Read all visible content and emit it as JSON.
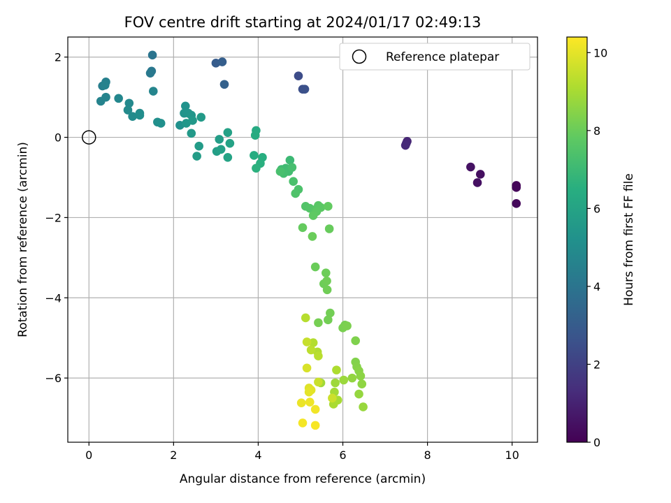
{
  "chart_data": {
    "type": "scatter",
    "title": "FOV centre drift starting at 2024/01/17 02:49:13",
    "xlabel": "Angular distance from reference (arcmin)",
    "ylabel": "Rotation from reference (arcmin)",
    "xlim": [
      -0.5,
      10.6
    ],
    "ylim": [
      -7.6,
      2.5
    ],
    "xticks": [
      0,
      2,
      4,
      6,
      8,
      10
    ],
    "yticks": [
      -6,
      -4,
      -2,
      0,
      2
    ],
    "grid": true,
    "colormap": "viridis",
    "colorbar": {
      "label": "Hours from first FF file",
      "range": [
        0,
        10.4
      ],
      "ticks": [
        0,
        2,
        4,
        6,
        8,
        10
      ]
    },
    "legend": {
      "location": "top-right",
      "entries": [
        {
          "label": "Reference platepar",
          "marker": "open-circle"
        }
      ]
    },
    "reference_point": {
      "x": 0,
      "y": 0
    },
    "points": [
      {
        "x": 10.1,
        "y": -1.2,
        "c": 0.1
      },
      {
        "x": 10.1,
        "y": -1.25,
        "c": 0.15
      },
      {
        "x": 10.1,
        "y": -1.65,
        "c": 0.2
      },
      {
        "x": 9.25,
        "y": -0.92,
        "c": 0.4
      },
      {
        "x": 9.18,
        "y": -1.13,
        "c": 0.45
      },
      {
        "x": 9.02,
        "y": -0.74,
        "c": 0.5
      },
      {
        "x": 7.52,
        "y": -0.1,
        "c": 1.1
      },
      {
        "x": 7.5,
        "y": -0.15,
        "c": 1.15
      },
      {
        "x": 7.48,
        "y": -0.2,
        "c": 1.2
      },
      {
        "x": 4.95,
        "y": 1.53,
        "c": 2.4
      },
      {
        "x": 5.05,
        "y": 1.2,
        "c": 2.5
      },
      {
        "x": 5.1,
        "y": 1.2,
        "c": 2.55
      },
      {
        "x": 3.0,
        "y": 1.85,
        "c": 3.0
      },
      {
        "x": 3.15,
        "y": 1.88,
        "c": 3.1
      },
      {
        "x": 3.2,
        "y": 1.32,
        "c": 3.2
      },
      {
        "x": 1.5,
        "y": 2.05,
        "c": 4.0
      },
      {
        "x": 1.48,
        "y": 1.65,
        "c": 4.1
      },
      {
        "x": 1.45,
        "y": 1.6,
        "c": 4.2
      },
      {
        "x": 0.32,
        "y": 1.28,
        "c": 4.4
      },
      {
        "x": 0.4,
        "y": 1.38,
        "c": 4.5
      },
      {
        "x": 0.38,
        "y": 1.3,
        "c": 4.55
      },
      {
        "x": 0.28,
        "y": 0.9,
        "c": 4.6
      },
      {
        "x": 0.4,
        "y": 1.0,
        "c": 4.65
      },
      {
        "x": 1.52,
        "y": 1.15,
        "c": 4.7
      },
      {
        "x": 0.7,
        "y": 0.97,
        "c": 4.8
      },
      {
        "x": 0.95,
        "y": 0.85,
        "c": 4.85
      },
      {
        "x": 0.92,
        "y": 0.68,
        "c": 4.9
      },
      {
        "x": 1.03,
        "y": 0.52,
        "c": 4.95
      },
      {
        "x": 1.2,
        "y": 0.6,
        "c": 5.0
      },
      {
        "x": 1.2,
        "y": 0.55,
        "c": 5.05
      },
      {
        "x": 1.62,
        "y": 0.38,
        "c": 5.1
      },
      {
        "x": 1.7,
        "y": 0.35,
        "c": 5.15
      },
      {
        "x": 2.15,
        "y": 0.3,
        "c": 5.2
      },
      {
        "x": 2.28,
        "y": 0.78,
        "c": 5.25
      },
      {
        "x": 2.25,
        "y": 0.6,
        "c": 5.3
      },
      {
        "x": 2.35,
        "y": 0.6,
        "c": 5.35
      },
      {
        "x": 2.42,
        "y": 0.55,
        "c": 5.4
      },
      {
        "x": 2.3,
        "y": 0.35,
        "c": 5.45
      },
      {
        "x": 2.45,
        "y": 0.42,
        "c": 5.5
      },
      {
        "x": 2.42,
        "y": 0.1,
        "c": 5.55
      },
      {
        "x": 2.65,
        "y": 0.5,
        "c": 5.6
      },
      {
        "x": 2.6,
        "y": -0.22,
        "c": 5.65
      },
      {
        "x": 2.55,
        "y": -0.47,
        "c": 5.7
      },
      {
        "x": 3.08,
        "y": -0.05,
        "c": 5.75
      },
      {
        "x": 3.02,
        "y": -0.35,
        "c": 5.8
      },
      {
        "x": 3.12,
        "y": -0.3,
        "c": 5.85
      },
      {
        "x": 3.28,
        "y": 0.12,
        "c": 5.9
      },
      {
        "x": 3.33,
        "y": -0.15,
        "c": 5.95
      },
      {
        "x": 3.28,
        "y": -0.5,
        "c": 6.0
      },
      {
        "x": 3.95,
        "y": 0.17,
        "c": 6.3
      },
      {
        "x": 3.93,
        "y": 0.05,
        "c": 6.35
      },
      {
        "x": 3.9,
        "y": -0.45,
        "c": 6.4
      },
      {
        "x": 4.1,
        "y": -0.5,
        "c": 6.5
      },
      {
        "x": 4.05,
        "y": -0.65,
        "c": 6.55
      },
      {
        "x": 3.95,
        "y": -0.77,
        "c": 6.6
      },
      {
        "x": 4.75,
        "y": -0.57,
        "c": 7.0
      },
      {
        "x": 4.55,
        "y": -0.8,
        "c": 7.05
      },
      {
        "x": 4.65,
        "y": -0.77,
        "c": 7.1
      },
      {
        "x": 4.72,
        "y": -0.85,
        "c": 7.15
      },
      {
        "x": 4.6,
        "y": -0.9,
        "c": 7.2
      },
      {
        "x": 4.8,
        "y": -0.75,
        "c": 7.25
      },
      {
        "x": 4.52,
        "y": -0.85,
        "c": 7.3
      },
      {
        "x": 4.83,
        "y": -1.1,
        "c": 7.35
      },
      {
        "x": 4.95,
        "y": -1.3,
        "c": 7.4
      },
      {
        "x": 4.88,
        "y": -1.4,
        "c": 7.45
      },
      {
        "x": 5.12,
        "y": -1.72,
        "c": 7.5
      },
      {
        "x": 5.22,
        "y": -1.77,
        "c": 7.55
      },
      {
        "x": 5.35,
        "y": -1.8,
        "c": 7.6
      },
      {
        "x": 5.42,
        "y": -1.7,
        "c": 7.65
      },
      {
        "x": 5.48,
        "y": -1.75,
        "c": 7.7
      },
      {
        "x": 5.38,
        "y": -1.85,
        "c": 7.75
      },
      {
        "x": 5.3,
        "y": -1.95,
        "c": 7.8
      },
      {
        "x": 5.65,
        "y": -1.72,
        "c": 7.85
      },
      {
        "x": 5.05,
        "y": -2.25,
        "c": 7.9
      },
      {
        "x": 5.68,
        "y": -2.28,
        "c": 7.95
      },
      {
        "x": 5.28,
        "y": -2.47,
        "c": 8.0
      },
      {
        "x": 5.35,
        "y": -3.23,
        "c": 8.0
      },
      {
        "x": 5.6,
        "y": -3.38,
        "c": 8.05
      },
      {
        "x": 5.55,
        "y": -3.65,
        "c": 8.05
      },
      {
        "x": 5.62,
        "y": -3.58,
        "c": 8.1
      },
      {
        "x": 5.63,
        "y": -3.8,
        "c": 8.1
      },
      {
        "x": 5.7,
        "y": -4.38,
        "c": 8.15
      },
      {
        "x": 5.65,
        "y": -4.55,
        "c": 8.15
      },
      {
        "x": 5.42,
        "y": -4.62,
        "c": 8.2
      },
      {
        "x": 6.05,
        "y": -4.68,
        "c": 8.2
      },
      {
        "x": 6.0,
        "y": -4.75,
        "c": 8.25
      },
      {
        "x": 6.1,
        "y": -4.7,
        "c": 8.3
      },
      {
        "x": 6.3,
        "y": -5.07,
        "c": 8.35
      },
      {
        "x": 6.3,
        "y": -5.6,
        "c": 8.4
      },
      {
        "x": 6.33,
        "y": -5.72,
        "c": 8.45
      },
      {
        "x": 6.38,
        "y": -5.82,
        "c": 8.5
      },
      {
        "x": 6.42,
        "y": -5.95,
        "c": 8.55
      },
      {
        "x": 6.45,
        "y": -6.15,
        "c": 8.6
      },
      {
        "x": 6.22,
        "y": -6.0,
        "c": 8.65
      },
      {
        "x": 6.38,
        "y": -6.4,
        "c": 8.7
      },
      {
        "x": 6.48,
        "y": -6.72,
        "c": 8.75
      },
      {
        "x": 6.02,
        "y": -6.05,
        "c": 8.8
      },
      {
        "x": 5.82,
        "y": -6.12,
        "c": 8.85
      },
      {
        "x": 5.48,
        "y": -6.12,
        "c": 8.9
      },
      {
        "x": 5.8,
        "y": -6.35,
        "c": 8.95
      },
      {
        "x": 5.88,
        "y": -6.55,
        "c": 9.0
      },
      {
        "x": 5.78,
        "y": -6.65,
        "c": 9.05
      },
      {
        "x": 5.85,
        "y": -5.8,
        "c": 9.1
      },
      {
        "x": 5.4,
        "y": -5.35,
        "c": 9.15
      },
      {
        "x": 5.3,
        "y": -5.12,
        "c": 9.2
      },
      {
        "x": 5.12,
        "y": -4.5,
        "c": 9.25
      },
      {
        "x": 5.42,
        "y": -5.45,
        "c": 9.3
      },
      {
        "x": 5.25,
        "y": -5.3,
        "c": 9.35
      },
      {
        "x": 5.15,
        "y": -5.1,
        "c": 9.5
      },
      {
        "x": 5.42,
        "y": -6.1,
        "c": 9.55
      },
      {
        "x": 5.75,
        "y": -6.5,
        "c": 9.6
      },
      {
        "x": 5.15,
        "y": -5.75,
        "c": 9.8
      },
      {
        "x": 5.2,
        "y": -6.25,
        "c": 9.9
      },
      {
        "x": 5.25,
        "y": -6.3,
        "c": 9.95
      },
      {
        "x": 5.2,
        "y": -6.35,
        "c": 10.0
      },
      {
        "x": 5.02,
        "y": -6.62,
        "c": 10.1
      },
      {
        "x": 5.22,
        "y": -6.6,
        "c": 10.15
      },
      {
        "x": 5.35,
        "y": -6.78,
        "c": 10.2
      },
      {
        "x": 5.05,
        "y": -7.12,
        "c": 10.25
      },
      {
        "x": 5.35,
        "y": -7.18,
        "c": 10.3
      }
    ]
  }
}
